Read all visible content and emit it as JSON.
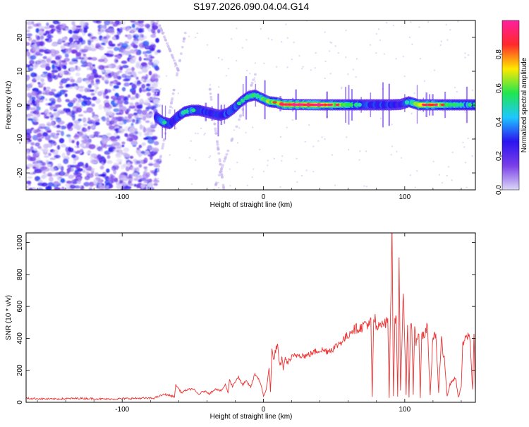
{
  "chart_data": [
    {
      "type": "heatmap",
      "title": "S197.2026.090.04.04.G14",
      "xlabel": "Height of straight line (km)",
      "ylabel": "Frequency (Hz)",
      "xlim": [
        -168,
        150
      ],
      "ylim": [
        -25,
        25
      ],
      "xticks": [
        -100,
        0,
        100
      ],
      "yticks": [
        -20,
        -10,
        0,
        10,
        20
      ],
      "colorbar": {
        "label": "Normalized spectral amplitude",
        "range": [
          0,
          1
        ],
        "ticks": [
          "0.0",
          "0.2",
          "0.4",
          "0.6",
          "0.8"
        ],
        "tick_values": [
          0,
          0.2,
          0.4,
          0.6,
          0.8
        ],
        "colors": [
          "#dcd8f6",
          "#7a3fe8",
          "#2a14f0",
          "#1ec8ff",
          "#20e650",
          "#ffe800",
          "#ff2a2a",
          "#ff1ea0"
        ]
      },
      "noise_region": {
        "x_range": [
          -168,
          -80
        ],
        "freq_range": [
          -25,
          25
        ]
      },
      "ridge": {
        "x": [
          -76,
          -71,
          -66,
          -61,
          -56,
          -51,
          -46,
          -41,
          -36,
          -31,
          -26,
          -21,
          -16,
          -11,
          -6,
          -1,
          4,
          9,
          14,
          40,
          70,
          90,
          97,
          103,
          110,
          120,
          130,
          140,
          150
        ],
        "freq": [
          -3.5,
          -5,
          -5.5,
          -3.5,
          -2,
          -1.5,
          -1.5,
          -2,
          -2.5,
          -3,
          -2.5,
          -1,
          1,
          2.5,
          3,
          2,
          1,
          0.8,
          0.2,
          0.1,
          0.1,
          0.1,
          0.2,
          1,
          0.1,
          0.1,
          0.1,
          0.1,
          0.1
        ],
        "amp": [
          0.45,
          0.6,
          0.55,
          0.5,
          0.6,
          0.6,
          0.55,
          0.5,
          0.45,
          0.5,
          0.55,
          0.55,
          0.6,
          0.6,
          0.65,
          0.7,
          0.75,
          0.8,
          0.95,
          0.95,
          0.55,
          0.5,
          0.45,
          0.6,
          0.85,
          0.85,
          0.7,
          0.65,
          0.6
        ]
      }
    },
    {
      "type": "line",
      "xlabel": "Height of straight line (km)",
      "ylabel": "SNR (10 * v/v)",
      "xlim": [
        -168,
        150
      ],
      "ylim": [
        0,
        1060
      ],
      "xticks": [
        -100,
        0,
        100
      ],
      "yticks": [
        0,
        200,
        400,
        600,
        800,
        1000
      ],
      "color": "#ee3333",
      "series": [
        {
          "name": "SNR",
          "x": [
            -168,
            -150,
            -130,
            -110,
            -90,
            -78,
            -70,
            -63,
            -62,
            -58,
            -55,
            -50,
            -46,
            -42,
            -38,
            -34,
            -30,
            -27,
            -25,
            -24,
            -22,
            -18,
            -15,
            -12,
            -9,
            -6,
            -3,
            -1,
            0,
            2,
            4,
            5,
            6,
            7,
            9,
            10,
            11,
            12,
            13,
            14,
            15,
            17,
            20,
            25,
            30,
            35,
            40,
            45,
            50,
            55,
            60,
            62,
            65,
            70,
            72,
            75,
            76,
            77,
            78,
            79,
            80,
            82,
            84,
            86,
            88,
            89,
            90,
            91,
            92,
            93,
            94,
            95,
            96,
            97,
            98,
            99,
            100,
            101,
            102,
            103,
            104,
            105,
            106,
            107,
            108,
            110,
            111,
            112,
            114,
            116,
            118,
            120,
            122,
            124,
            126,
            127,
            128,
            130,
            132,
            134,
            136,
            138,
            140,
            141,
            142,
            144,
            146,
            148,
            149,
            150
          ],
          "y": [
            25,
            20,
            25,
            20,
            25,
            25,
            50,
            35,
            110,
            60,
            75,
            85,
            50,
            70,
            55,
            85,
            70,
            110,
            60,
            145,
            100,
            160,
            110,
            130,
            95,
            180,
            140,
            80,
            40,
            80,
            210,
            70,
            330,
            260,
            340,
            350,
            250,
            230,
            280,
            210,
            270,
            250,
            280,
            300,
            290,
            310,
            330,
            320,
            340,
            380,
            420,
            450,
            460,
            470,
            500,
            480,
            510,
            30,
            510,
            520,
            450,
            480,
            510,
            490,
            520,
            30,
            600,
            1060,
            40,
            520,
            530,
            30,
            850,
            70,
            360,
            720,
            380,
            40,
            520,
            30,
            460,
            480,
            50,
            490,
            370,
            420,
            30,
            420,
            410,
            480,
            40,
            420,
            420,
            60,
            410,
            280,
            290,
            40,
            110,
            140,
            150,
            30,
            100,
            350,
            380,
            410,
            420,
            80,
            420,
            60
          ]
        }
      ]
    }
  ]
}
